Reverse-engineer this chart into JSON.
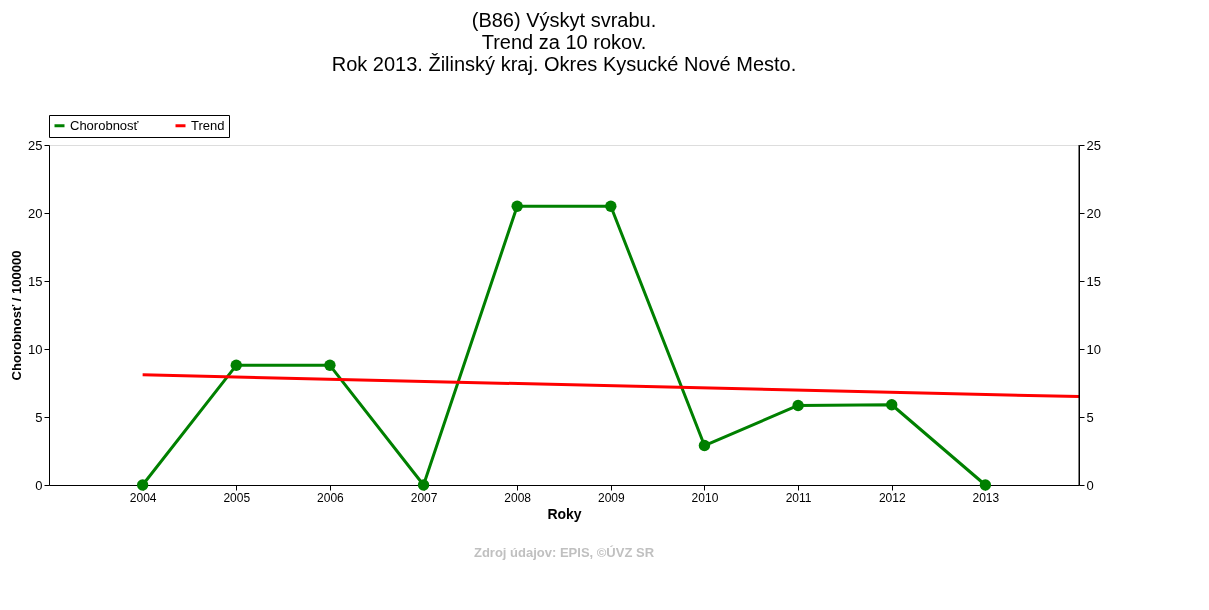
{
  "chart_data": {
    "type": "line",
    "title": [
      "(B86) Výskyt svrabu.",
      "Trend za 10 rokov.",
      "Rok 2013. Žilinský kraj. Okres Kysucké Nové Mesto."
    ],
    "xlabel": "Roky",
    "ylabel": "Chorobnosť / 100000",
    "x": [
      2004,
      2005,
      2006,
      2007,
      2008,
      2009,
      2010,
      2011,
      2012,
      2013
    ],
    "series": [
      {
        "name": "Chorobnosť",
        "color": "#008000",
        "marker": "circle",
        "values": [
          0,
          8.8,
          8.8,
          0,
          20.5,
          20.5,
          2.9,
          5.85,
          5.9,
          0
        ]
      },
      {
        "name": "Trend",
        "color": "#ff0000",
        "marker": "none",
        "x": [
          2004,
          2014
        ],
        "values": [
          8.1,
          6.5
        ]
      }
    ],
    "xlim": [
      2003,
      2014
    ],
    "xticks": [
      2004,
      2005,
      2006,
      2007,
      2008,
      2009,
      2010,
      2011,
      2012,
      2013
    ],
    "ylim": [
      0,
      25
    ],
    "yticks": [
      0,
      5,
      10,
      15,
      20,
      25
    ],
    "y2lim": [
      0,
      25
    ],
    "y2ticks": [
      0,
      5,
      10,
      15,
      20,
      25
    ],
    "grid": false,
    "legend": "top left",
    "annotations": [
      "Zdroj údajov: EPIS, ©ÚVZ SR"
    ]
  }
}
